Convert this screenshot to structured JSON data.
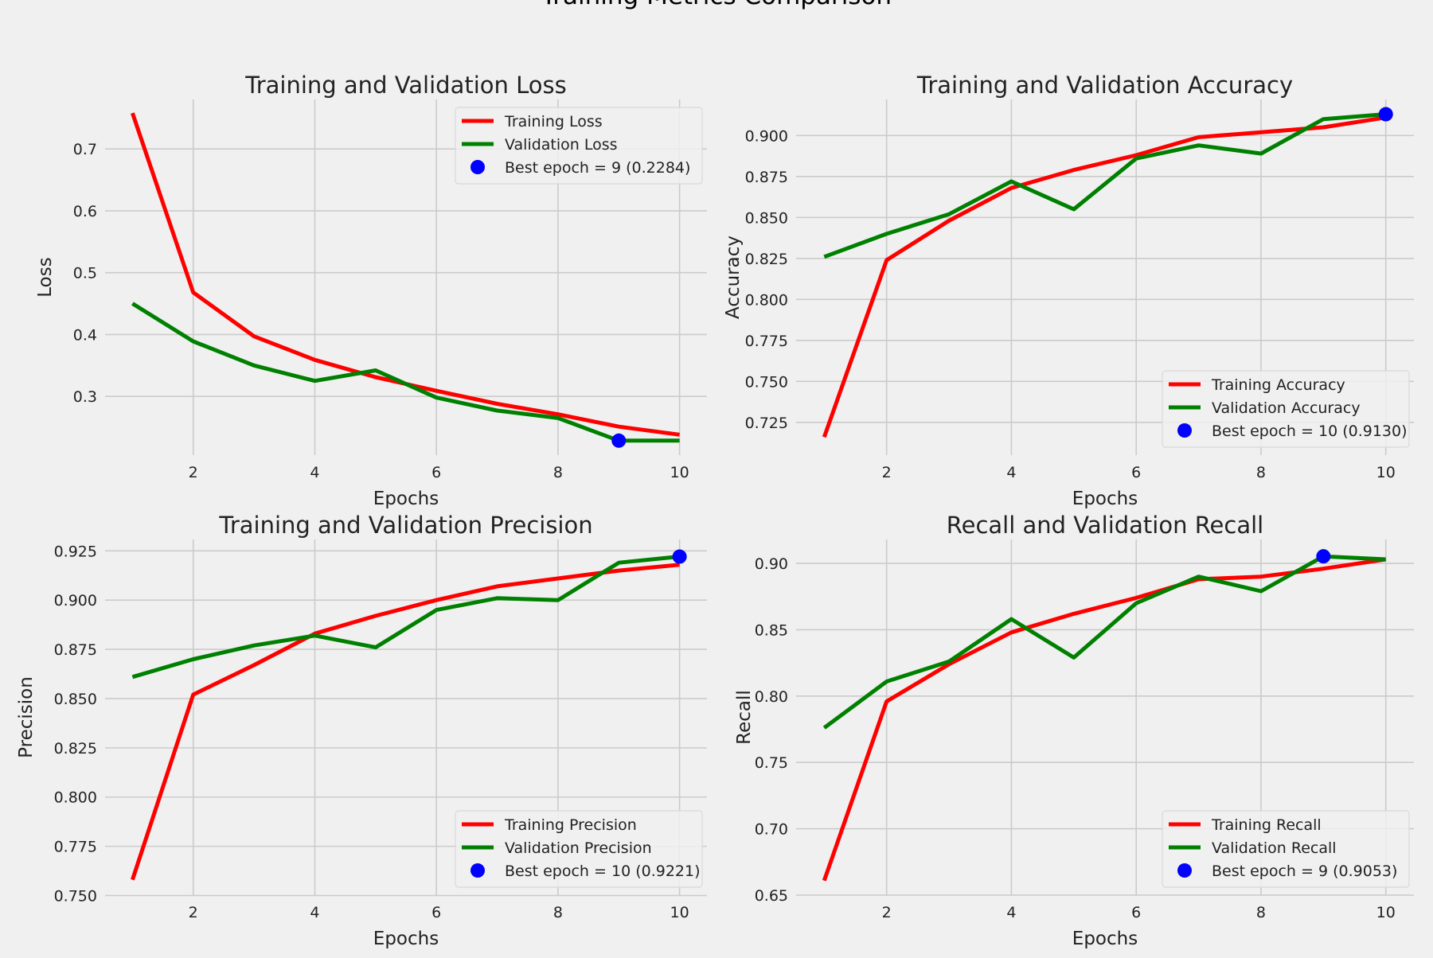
{
  "figure": {
    "suptitle": "Training Metrics Comparison",
    "background": "#f0f0f0",
    "colors": {
      "training": "#ff0000",
      "validation": "#008000",
      "best": "#0000ff",
      "grid": "#cbcbcb"
    }
  },
  "chart_data": [
    {
      "type": "line",
      "title": "Training and Validation Loss",
      "xlabel": "Epochs",
      "ylabel": "Loss",
      "xlim": [
        0.55,
        10.45
      ],
      "ylim": [
        0.205,
        0.78
      ],
      "xticks": [
        2,
        4,
        6,
        8,
        10
      ],
      "yticks": [
        0.3,
        0.4,
        0.5,
        0.6,
        0.7
      ],
      "tick_decimals": 1,
      "grid": true,
      "legend_position": "top-right",
      "x": [
        1,
        2,
        3,
        4,
        5,
        6,
        7,
        8,
        9,
        10
      ],
      "series": [
        {
          "name": "Training Loss",
          "color": "#ff0000",
          "values": [
            0.758,
            0.468,
            0.397,
            0.359,
            0.331,
            0.309,
            0.288,
            0.271,
            0.251,
            0.238
          ]
        },
        {
          "name": "Validation Loss",
          "color": "#008000",
          "values": [
            0.45,
            0.389,
            0.35,
            0.325,
            0.342,
            0.298,
            0.277,
            0.265,
            0.2284,
            0.2284
          ]
        }
      ],
      "best_point": {
        "label": "Best epoch = 9 (0.2284)",
        "x": 9,
        "y": 0.2284,
        "color": "#0000ff"
      }
    },
    {
      "type": "line",
      "title": "Training and Validation Accuracy",
      "xlabel": "Epochs",
      "ylabel": "Accuracy",
      "xlim": [
        0.55,
        10.45
      ],
      "ylim": [
        0.705,
        0.922
      ],
      "xticks": [
        2,
        4,
        6,
        8,
        10
      ],
      "yticks": [
        0.725,
        0.75,
        0.775,
        0.8,
        0.825,
        0.85,
        0.875,
        0.9
      ],
      "tick_decimals": 3,
      "grid": true,
      "legend_position": "bottom-right",
      "x": [
        1,
        2,
        3,
        4,
        5,
        6,
        7,
        8,
        9,
        10
      ],
      "series": [
        {
          "name": "Training Accuracy",
          "color": "#ff0000",
          "values": [
            0.716,
            0.824,
            0.848,
            0.868,
            0.879,
            0.888,
            0.899,
            0.902,
            0.905,
            0.911
          ]
        },
        {
          "name": "Validation Accuracy",
          "color": "#008000",
          "values": [
            0.826,
            0.84,
            0.852,
            0.872,
            0.855,
            0.886,
            0.894,
            0.889,
            0.91,
            0.913
          ]
        }
      ],
      "best_point": {
        "label": "Best epoch = 10 (0.9130)",
        "x": 10,
        "y": 0.913,
        "color": "#0000ff"
      }
    },
    {
      "type": "line",
      "title": "Training and Validation Precision",
      "xlabel": "Epochs",
      "ylabel": "Precision",
      "xlim": [
        0.55,
        10.45
      ],
      "ylim": [
        0.7502,
        0.9308
      ],
      "xticks": [
        2,
        4,
        6,
        8,
        10
      ],
      "yticks": [
        0.75,
        0.775,
        0.8,
        0.825,
        0.85,
        0.875,
        0.9,
        0.925
      ],
      "tick_decimals": 3,
      "grid": true,
      "legend_position": "bottom-right",
      "x": [
        1,
        2,
        3,
        4,
        5,
        6,
        7,
        8,
        9,
        10
      ],
      "series": [
        {
          "name": "Training Precision",
          "color": "#ff0000",
          "values": [
            0.758,
            0.852,
            0.867,
            0.883,
            0.892,
            0.9,
            0.907,
            0.911,
            0.915,
            0.918
          ]
        },
        {
          "name": "Validation Precision",
          "color": "#008000",
          "values": [
            0.861,
            0.87,
            0.877,
            0.882,
            0.876,
            0.895,
            0.901,
            0.9,
            0.919,
            0.9221
          ]
        }
      ],
      "best_point": {
        "label": "Best epoch = 10 (0.9221)",
        "x": 10,
        "y": 0.9221,
        "color": "#0000ff"
      }
    },
    {
      "type": "line",
      "title": "Recall and Validation Recall",
      "xlabel": "Epochs",
      "ylabel": "Recall",
      "xlim": [
        0.55,
        10.45
      ],
      "ylim": [
        0.65,
        0.918
      ],
      "xticks": [
        2,
        4,
        6,
        8,
        10
      ],
      "yticks": [
        0.65,
        0.7,
        0.75,
        0.8,
        0.85,
        0.9
      ],
      "tick_decimals": 2,
      "grid": true,
      "legend_position": "bottom-right",
      "x": [
        1,
        2,
        3,
        4,
        5,
        6,
        7,
        8,
        9,
        10
      ],
      "series": [
        {
          "name": "Training Recall",
          "color": "#ff0000",
          "values": [
            0.661,
            0.796,
            0.824,
            0.848,
            0.862,
            0.874,
            0.888,
            0.89,
            0.896,
            0.903
          ]
        },
        {
          "name": "Validation Recall",
          "color": "#008000",
          "values": [
            0.776,
            0.811,
            0.826,
            0.858,
            0.829,
            0.87,
            0.89,
            0.879,
            0.9053,
            0.903
          ]
        }
      ],
      "best_point": {
        "label": "Best epoch = 9 (0.9053)",
        "x": 9,
        "y": 0.9053,
        "color": "#0000ff"
      }
    }
  ]
}
